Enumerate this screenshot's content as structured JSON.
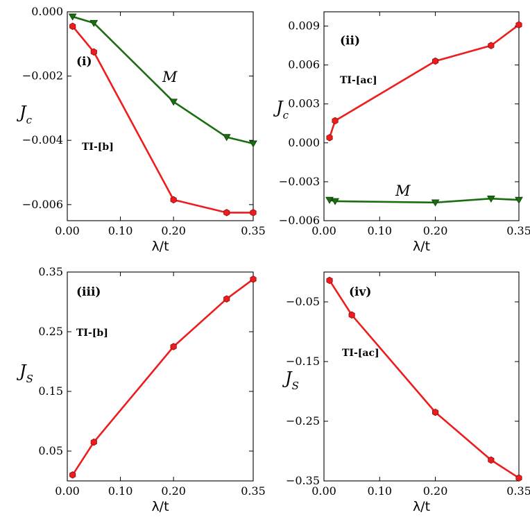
{
  "figure": {
    "title": "",
    "colors": {
      "red": "#ee1c1c",
      "green": "#1a6e10",
      "axis": "#000000"
    }
  },
  "chart_data": [
    {
      "id": "i",
      "type": "line",
      "panel_label": "(i)",
      "annotation": "TI-[b]",
      "xlabel": "λ/t",
      "ylabel": "J",
      "ylabel_sub": "c",
      "xlim": [
        0.0,
        0.35
      ],
      "ylim": [
        -0.0065,
        0.0
      ],
      "xticks": [
        0.0,
        0.1,
        0.2,
        0.35
      ],
      "xtick_labels": [
        "0.00",
        "0.10",
        "0.20",
        "0.35"
      ],
      "yticks": [
        0.0,
        -0.002,
        -0.004,
        -0.006
      ],
      "ytick_labels": [
        "0.000",
        "−0.002",
        "−0.004",
        "−0.006"
      ],
      "series": [
        {
          "name": "TI-[b]",
          "color": "#ee1c1c",
          "marker": "hexagon",
          "x": [
            0.01,
            0.05,
            0.2,
            0.3,
            0.35
          ],
          "y": [
            -0.00045,
            -0.00125,
            -0.00585,
            -0.00625,
            -0.00625
          ]
        },
        {
          "name": "M",
          "label": "M",
          "color": "#1a6e10",
          "marker": "triangle-down",
          "x": [
            0.01,
            0.05,
            0.2,
            0.3,
            0.35
          ],
          "y": [
            -0.00015,
            -0.00035,
            -0.0028,
            -0.0039,
            -0.0041
          ]
        }
      ]
    },
    {
      "id": "ii",
      "type": "line",
      "panel_label": "(ii)",
      "annotation": "TI-[ac]",
      "xlabel": "λ/t",
      "ylabel": "J",
      "ylabel_sub": "c",
      "xlim": [
        0.0,
        0.35
      ],
      "ylim": [
        -0.006,
        0.0101
      ],
      "xticks": [
        0.0,
        0.1,
        0.2,
        0.35
      ],
      "xtick_labels": [
        "0.00",
        "0.10",
        "0.20",
        "0.35"
      ],
      "yticks": [
        0.009,
        0.006,
        0.003,
        0.0,
        -0.003,
        -0.006
      ],
      "ytick_labels": [
        "0.009",
        "0.006",
        "0.003",
        "0.000",
        "−0.003",
        "−0.006"
      ],
      "series": [
        {
          "name": "TI-[ac]",
          "color": "#ee1c1c",
          "marker": "hexagon",
          "x": [
            0.01,
            0.02,
            0.2,
            0.3,
            0.35
          ],
          "y": [
            0.0004,
            0.0017,
            0.0063,
            0.0075,
            0.0091
          ]
        },
        {
          "name": "M",
          "label": "M",
          "color": "#1a6e10",
          "marker": "triangle-down",
          "x": [
            0.01,
            0.02,
            0.2,
            0.3,
            0.35
          ],
          "y": [
            -0.0044,
            -0.0045,
            -0.0046,
            -0.0043,
            -0.0044
          ]
        }
      ]
    },
    {
      "id": "iii",
      "type": "line",
      "panel_label": "(iii)",
      "annotation": "TI-[b]",
      "xlabel": "λ/t",
      "ylabel": "J",
      "ylabel_sub": "S",
      "xlim": [
        0.0,
        0.35
      ],
      "ylim": [
        0.0,
        0.35
      ],
      "xticks": [
        0.0,
        0.1,
        0.2,
        0.35
      ],
      "xtick_labels": [
        "0.00",
        "0.10",
        "0.20",
        "0.35"
      ],
      "yticks": [
        0.35,
        0.25,
        0.15,
        0.05
      ],
      "ytick_labels": [
        "0.35",
        "0.25",
        "0.15",
        "0.05"
      ],
      "series": [
        {
          "name": "TI-[b]",
          "color": "#ee1c1c",
          "marker": "hexagon",
          "x": [
            0.01,
            0.05,
            0.2,
            0.3,
            0.35
          ],
          "y": [
            0.01,
            0.065,
            0.225,
            0.305,
            0.338
          ]
        }
      ]
    },
    {
      "id": "iv",
      "type": "line",
      "panel_label": "(iv)",
      "annotation": "TI-[ac]",
      "xlabel": "λ/t",
      "ylabel": "J",
      "ylabel_sub": "S",
      "xlim": [
        0.0,
        0.35
      ],
      "ylim": [
        -0.35,
        0.0
      ],
      "xticks": [
        0.0,
        0.1,
        0.2,
        0.35
      ],
      "xtick_labels": [
        "0.00",
        "0.10",
        "0.20",
        "0.35"
      ],
      "yticks": [
        -0.05,
        -0.15,
        -0.25,
        -0.35
      ],
      "ytick_labels": [
        "−0.05",
        "−0.15",
        "−0.25",
        "−0.35"
      ],
      "series": [
        {
          "name": "TI-[ac]",
          "color": "#ee1c1c",
          "marker": "hexagon",
          "x": [
            0.01,
            0.05,
            0.2,
            0.3,
            0.35
          ],
          "y": [
            -0.014,
            -0.072,
            -0.235,
            -0.315,
            -0.345
          ]
        }
      ]
    }
  ]
}
